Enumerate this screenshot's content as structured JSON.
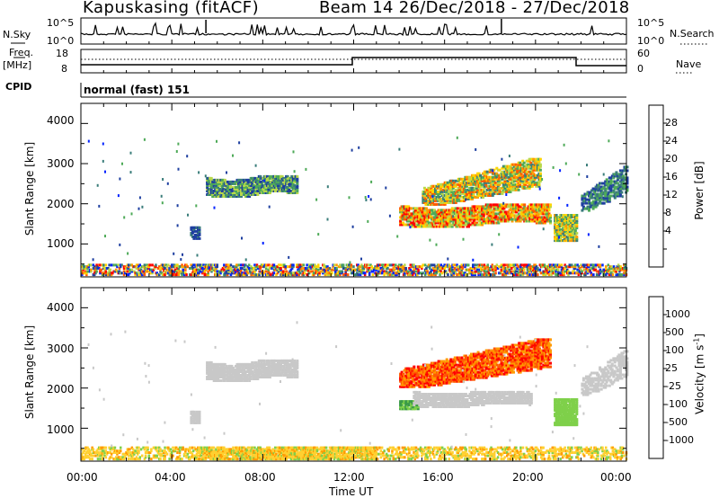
{
  "header": {
    "station": "Kapuskasing (fitACF)",
    "beam_info": "Beam 14  26/Dec/2018 - 27/Dec/2018"
  },
  "top_panels": {
    "nsky_label": "N.Sky",
    "nsky_ticks": [
      "10^5",
      "10^0"
    ],
    "nsearch_ticks": [
      "10^5",
      "10^0"
    ],
    "nsearch_label": "N.Search",
    "freq_label_line1": "Freq.",
    "freq_label_line2": "[MHz]",
    "freq_ticks": [
      "18",
      "8"
    ],
    "nave_ticks": [
      "60",
      "0"
    ],
    "nave_label": "Nave",
    "cpid_label": "CPID",
    "cpid_value": "normal (fast) 151"
  },
  "axes": {
    "ylabel": "Slant Range [km]",
    "yticks": [
      "4000",
      "3000",
      "2000",
      "1000"
    ],
    "xticks": [
      "00:00",
      "04:00",
      "08:00",
      "12:00",
      "16:00",
      "20:00",
      "00:00"
    ],
    "xlabel": "Time UT"
  },
  "colorbars": {
    "power": {
      "label": "Power [dB]",
      "ticks": [
        "28",
        "24",
        "20",
        "16",
        "12",
        "8",
        "4"
      ],
      "colors": [
        "#ff0000",
        "#ff5a00",
        "#ff9c00",
        "#ffd400",
        "#b8d84a",
        "#4eaa58",
        "#3a7d7a",
        "#1e3fa0",
        "#0022ff"
      ]
    },
    "velocity": {
      "label": "Velocity [m s^-1]",
      "ticks": [
        "1000",
        "500",
        "100",
        "25",
        "-25",
        "-100",
        "-500",
        "-1000"
      ],
      "colors": [
        "#1536c8",
        "#3a72a8",
        "#3a9a48",
        "#7fd04a",
        "#c8c8c8",
        "#ffd030",
        "#ff9a00",
        "#ff5a00",
        "#ff0000"
      ]
    }
  },
  "chart_data": [
    {
      "type": "heatmap",
      "name": "power",
      "x_unit": "hours UT from 00:00 26/Dec/2018",
      "xlim": [
        0,
        24
      ],
      "ylim": [
        180,
        4500
      ],
      "regions": [
        {
          "t0": 5.5,
          "t1": 9.5,
          "r0": 2150,
          "r1": 2650,
          "level": "12-20 dB"
        },
        {
          "t0": 4.8,
          "t1": 5.2,
          "r0": 1100,
          "r1": 1400,
          "level": "8-12 dB"
        },
        {
          "t0": 14.0,
          "t1": 20.6,
          "r0": 1400,
          "r1": 1950,
          "level": "16-28 dB"
        },
        {
          "t0": 15.0,
          "t1": 20.2,
          "r0": 1950,
          "r1": 3100,
          "level": "16-28 dB"
        },
        {
          "t0": 20.8,
          "t1": 21.8,
          "r0": 1050,
          "r1": 1700,
          "level": "12-24 dB"
        },
        {
          "t0": 22.0,
          "t1": 24.0,
          "r0": 1800,
          "r1": 2900,
          "level": "4-12 dB"
        }
      ]
    },
    {
      "type": "heatmap",
      "name": "velocity",
      "x_unit": "hours UT from 00:00 26/Dec/2018",
      "xlim": [
        0,
        24
      ],
      "ylim": [
        180,
        4500
      ],
      "regions": [
        {
          "t0": 5.5,
          "t1": 9.5,
          "r0": 2150,
          "r1": 2650,
          "level": "-25 to 25"
        },
        {
          "t0": 14.0,
          "t1": 14.8,
          "r0": 1450,
          "r1": 1650,
          "level": "25 to 100"
        },
        {
          "t0": 14.0,
          "t1": 20.6,
          "r0": 2000,
          "r1": 3200,
          "level": "-500 to -100"
        },
        {
          "t0": 14.6,
          "t1": 19.8,
          "r0": 1500,
          "r1": 1900,
          "level": "-25 to 25"
        },
        {
          "t0": 20.8,
          "t1": 21.8,
          "r0": 1050,
          "r1": 1700,
          "level": "25 to 100"
        },
        {
          "t0": 22.0,
          "t1": 24.0,
          "r0": 1800,
          "r1": 2900,
          "level": "-25 to 25"
        }
      ]
    }
  ]
}
